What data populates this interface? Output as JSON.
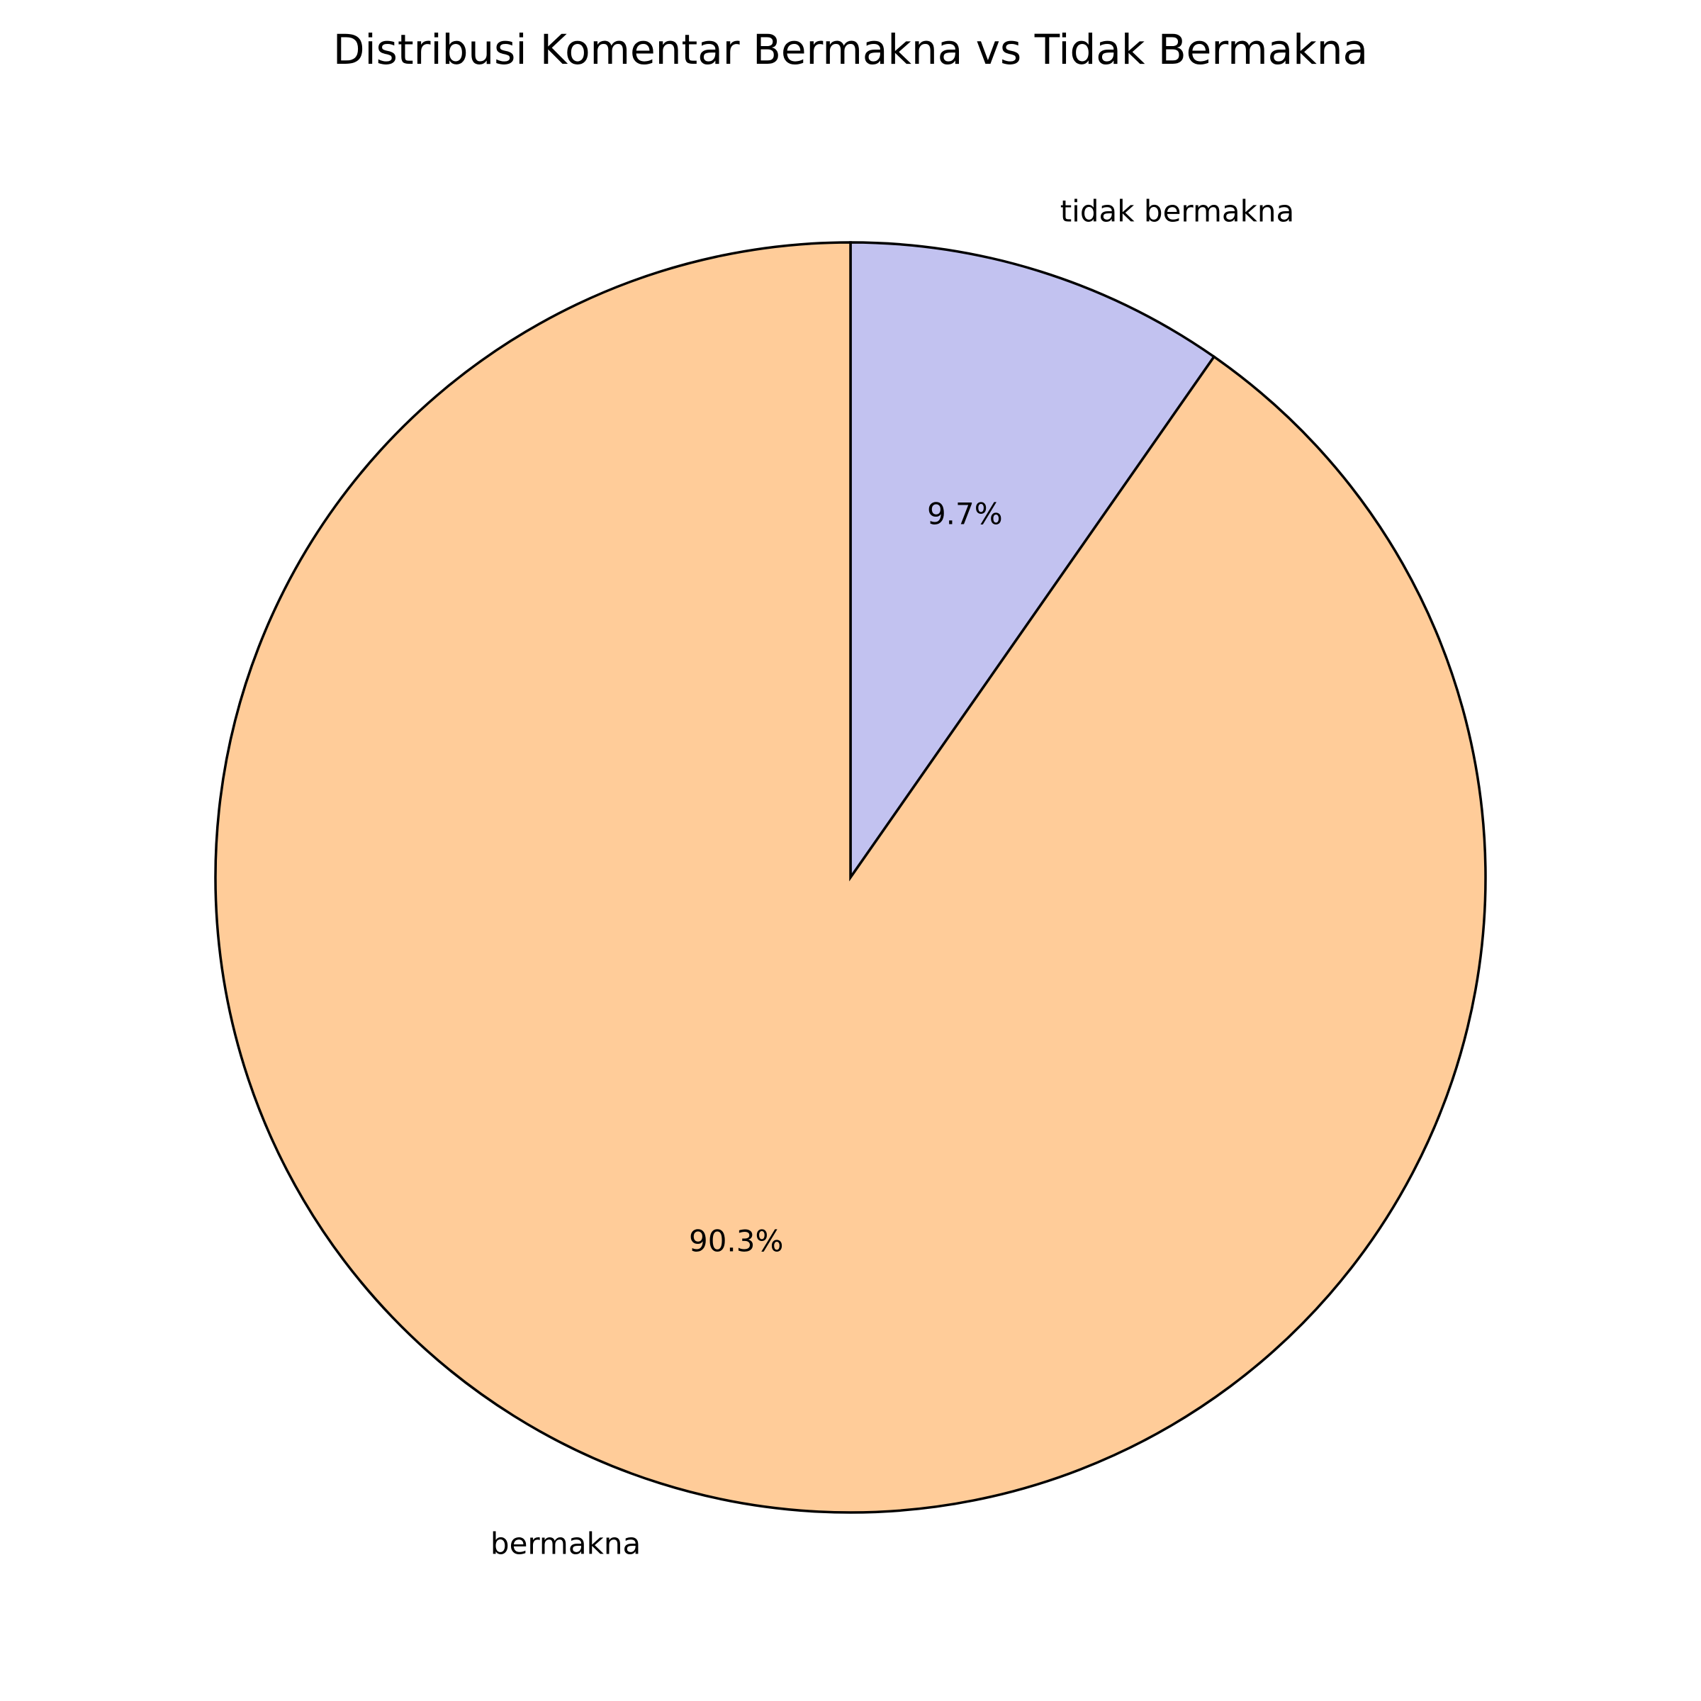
{
  "chart_data": {
    "type": "pie",
    "title": "Distribusi Komentar Bermakna vs Tidak Bermakna",
    "slices": [
      {
        "label": "tidak bermakna",
        "value": 9.7,
        "pct_label": "9.7%",
        "color": "#c2c2f0"
      },
      {
        "label": "bermakna",
        "value": 90.3,
        "pct_label": "90.3%",
        "color": "#ffcc99"
      }
    ],
    "start_angle_deg": 90,
    "direction": "clockwise",
    "edge_color": "#000000",
    "legend": "none"
  }
}
